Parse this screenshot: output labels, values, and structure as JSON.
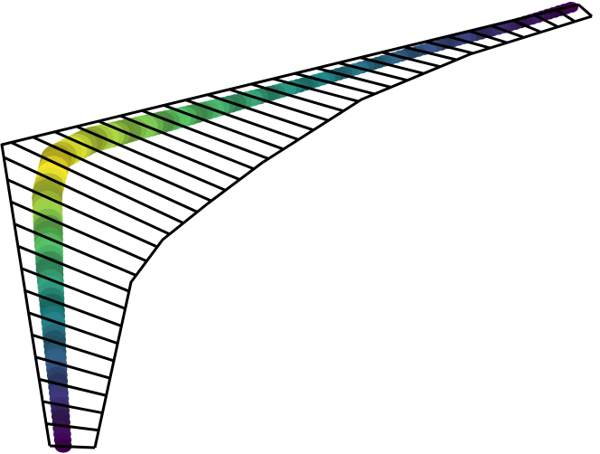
{
  "scene": {
    "frame_color": "#000000",
    "background_color": "#ffffff",
    "tube_colormap": "viridis",
    "colormap_stops": [
      "#440154",
      "#3b528b",
      "#21918c",
      "#5ec962",
      "#fde725"
    ]
  }
}
